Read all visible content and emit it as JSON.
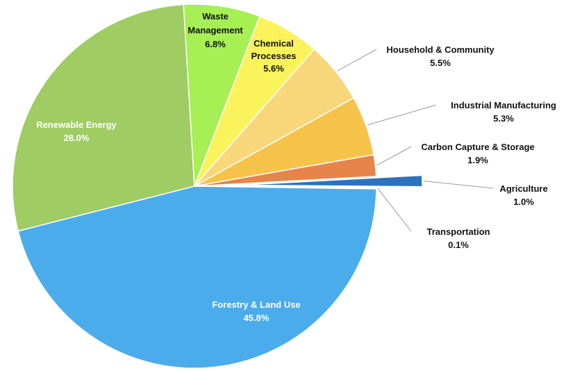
{
  "chart_data": {
    "type": "pie",
    "title": "",
    "unit": "%",
    "slices": [
      {
        "label": "Forestry & Land Use",
        "value": 45.8,
        "display": "45.8%",
        "color": "#4aaceb",
        "label_color": "#ffffff",
        "label_mode": "inside"
      },
      {
        "label": "Renewable Energy",
        "value": 28.0,
        "display": "28.0%",
        "color": "#9fcc63",
        "label_color": "#ffffff",
        "label_mode": "inside"
      },
      {
        "label": "Waste Management",
        "value": 6.8,
        "display": "6.8%",
        "color": "#a6ef55",
        "label_color": "#111111",
        "label_mode": "inside"
      },
      {
        "label": "Chemical Processes",
        "value": 5.6,
        "display": "5.6%",
        "color": "#fbf35c",
        "label_color": "#111111",
        "label_mode": "inside"
      },
      {
        "label": "Household & Community",
        "value": 5.5,
        "display": "5.5%",
        "color": "#f8d67a",
        "label_color": "#111111",
        "label_mode": "outside"
      },
      {
        "label": "Industrial Manufacturing",
        "value": 5.3,
        "display": "5.3%",
        "color": "#f6c34a",
        "label_color": "#111111",
        "label_mode": "outside"
      },
      {
        "label": "Carbon Capture & Storage",
        "value": 1.9,
        "display": "1.9%",
        "color": "#e6844a",
        "label_color": "#111111",
        "label_mode": "outside"
      },
      {
        "label": "Agriculture",
        "value": 1.0,
        "display": "1.0%",
        "color": "#2e72be",
        "label_color": "#111111",
        "label_mode": "outside",
        "exploded": true
      },
      {
        "label": "Transportation",
        "value": 0.1,
        "display": "0.1%",
        "color": "#d8d8d8",
        "label_color": "#111111",
        "label_mode": "outside"
      }
    ]
  }
}
